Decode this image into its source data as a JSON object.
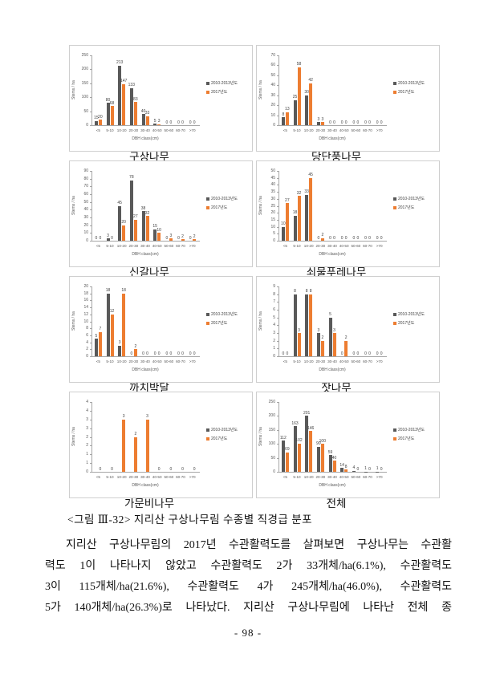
{
  "figure": {
    "caption": "<그림 Ⅲ-32> 지리산 구상나무림 수종별 직경급 분포"
  },
  "body": {
    "line1": "지리산 구상나무림의 2017년 수관활력도를 살펴보면 구상나무는 수관활",
    "line2": "력도 1이 나타나지 않았고 수관활력도 2가 33개체/ha(6.1%), 수관활력도",
    "line3": "3이 115개체/ha(21.6%), 수관활력도 4가 245개체/ha(46.0%), 수관활력도",
    "line4": "5가 140개체/ha(26.3%)로 나타났다. 지리산 구상나무림에 나타난 전체 종"
  },
  "footer": {
    "page_number": "- 98 -"
  },
  "chart_defaults": {
    "ylabel": "Stems / ha",
    "xlabel": "DBH class(cm)",
    "categories": [
      "<5",
      "5-10",
      "10-20",
      "20-30",
      "30-40",
      "40-50",
      "50-60",
      "60-70",
      ">70"
    ],
    "legend": [
      "2010-2013년도",
      "2017년도"
    ],
    "colors": {
      "series1": "#595959",
      "series2": "#ED7D31"
    },
    "legend_position": "right",
    "grid": "off"
  },
  "chart_data": [
    {
      "type": "bar",
      "title": "구상나무",
      "ylim": [
        0,
        250
      ],
      "ytick_step": 50,
      "series": [
        {
          "name": "2010-2013년도",
          "values": [
            15,
            80,
            213,
            133,
            40,
            5,
            0,
            0,
            0
          ]
        },
        {
          "name": "2017년도",
          "values": [
            20,
            68,
            147,
            83,
            33,
            3,
            0,
            0,
            0
          ]
        }
      ]
    },
    {
      "type": "bar",
      "title": "당단풍나무",
      "ylim": [
        0,
        70
      ],
      "ytick_step": 10,
      "series": [
        {
          "name": "2010-2013년도",
          "values": [
            8,
            25,
            30,
            3,
            0,
            0,
            0,
            0,
            0
          ]
        },
        {
          "name": "2017년도",
          "values": [
            13,
            58,
            42,
            3,
            0,
            0,
            0,
            0,
            0
          ]
        }
      ]
    },
    {
      "type": "bar",
      "title": "신갈나무",
      "ylim": [
        0,
        90
      ],
      "ytick_step": 10,
      "series": [
        {
          "name": "2010-2013년도",
          "values": [
            0,
            3,
            45,
            78,
            38,
            15,
            0,
            0,
            0
          ]
        },
        {
          "name": "2017년도",
          "values": [
            0,
            0,
            20,
            27,
            32,
            10,
            3,
            2,
            2
          ]
        }
      ]
    },
    {
      "type": "bar",
      "title": "쇠물푸레나무",
      "ylim": [
        0,
        50
      ],
      "ytick_step": 5,
      "series": [
        {
          "name": "2010-2013년도",
          "values": [
            10,
            18,
            33,
            0,
            0,
            0,
            0,
            0,
            0
          ]
        },
        {
          "name": "2017년도",
          "values": [
            27,
            32,
            45,
            2,
            0,
            0,
            0,
            0,
            0
          ]
        }
      ]
    },
    {
      "type": "bar",
      "title": "까치박달",
      "ylim": [
        0,
        20
      ],
      "ytick_step": 2,
      "series": [
        {
          "name": "2010-2013년도",
          "values": [
            5,
            18,
            3,
            0,
            0,
            0,
            0,
            0,
            0
          ]
        },
        {
          "name": "2017년도",
          "values": [
            7,
            12,
            18,
            2,
            0,
            0,
            0,
            0,
            0
          ]
        }
      ]
    },
    {
      "type": "bar",
      "title": "잣나무",
      "ylim": [
        0,
        9
      ],
      "ytick_step": 1,
      "series": [
        {
          "name": "2010-2013년도",
          "values": [
            0,
            8,
            8,
            3,
            5,
            0,
            0,
            0,
            0
          ]
        },
        {
          "name": "2017년도",
          "values": [
            0,
            3,
            8,
            2,
            3,
            2,
            0,
            0,
            0
          ]
        }
      ]
    },
    {
      "type": "bar",
      "title": "가문비나무",
      "ylim": [
        0,
        4
      ],
      "ytick_step": 0.5,
      "round_tick_labels": true,
      "data_labels": "series2",
      "series": [
        {
          "name": "2010-2013년도",
          "values": [
            0,
            0,
            0,
            0,
            0,
            0,
            0,
            0,
            0
          ]
        },
        {
          "name": "2017년도",
          "values": [
            0,
            0,
            3,
            2,
            3,
            0,
            0,
            0,
            0
          ]
        }
      ]
    },
    {
      "type": "bar",
      "title": "전체",
      "ylim": [
        0,
        250
      ],
      "ytick_step": 50,
      "series": [
        {
          "name": "2010-2013년도",
          "values": [
            112,
            163,
            201,
            90,
            59,
            14,
            4,
            1,
            1
          ]
        },
        {
          "name": "2017년도",
          "values": [
            69,
            102,
            146,
            100,
            40,
            8,
            0,
            0,
            0
          ]
        }
      ]
    }
  ]
}
